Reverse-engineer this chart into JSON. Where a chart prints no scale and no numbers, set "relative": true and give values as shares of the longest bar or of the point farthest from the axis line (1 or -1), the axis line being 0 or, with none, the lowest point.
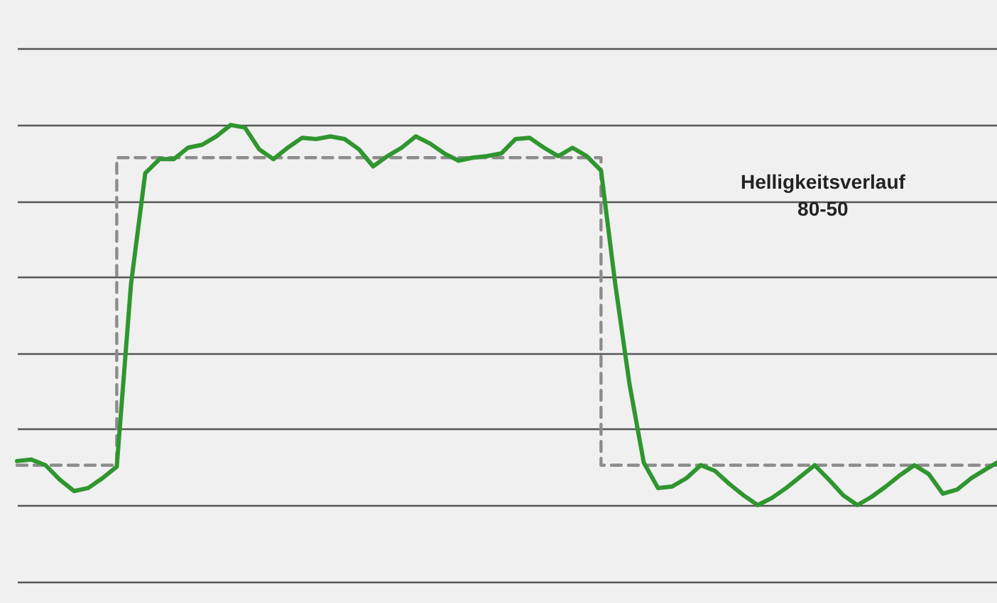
{
  "chart_data": {
    "type": "line",
    "relative": true,
    "grid": true,
    "categories": [
      null,
      null,
      null,
      null,
      null,
      null,
      null,
      null,
      null,
      null,
      null,
      null,
      null,
      null,
      null,
      null,
      null,
      null,
      null,
      null,
      null,
      null,
      null,
      null,
      null,
      null,
      null,
      null,
      null,
      null,
      null,
      null,
      null,
      null,
      null,
      null,
      null,
      null,
      null,
      null,
      null,
      null,
      null,
      null,
      null,
      null,
      null,
      null,
      null,
      null,
      null,
      null,
      null,
      null,
      null,
      null,
      null,
      null,
      null,
      null,
      null,
      null,
      null,
      null,
      null,
      null,
      null,
      null,
      null,
      null
    ],
    "series": [
      {
        "type": "step",
        "color": "#8c8c8c",
        "line_style": "dashed",
        "values": [
          0.105,
          0.105,
          0.105,
          0.105,
          0.105,
          0.105,
          0.105,
          0.914,
          0.914,
          0.914,
          0.914,
          0.914,
          0.914,
          0.914,
          0.914,
          0.914,
          0.914,
          0.914,
          0.914,
          0.914,
          0.914,
          0.914,
          0.914,
          0.914,
          0.914,
          0.914,
          0.914,
          0.914,
          0.914,
          0.914,
          0.914,
          0.914,
          0.914,
          0.914,
          0.914,
          0.914,
          0.914,
          0.914,
          0.914,
          0.914,
          0.914,
          0.105,
          0.105,
          0.105,
          0.105,
          0.105,
          0.105,
          0.105,
          0.105,
          0.105,
          0.105,
          0.105,
          0.105,
          0.105,
          0.105,
          0.105,
          0.105,
          0.105,
          0.105,
          0.105,
          0.105,
          0.105,
          0.105,
          0.105,
          0.105,
          0.105,
          0.105,
          0.105,
          0.105,
          0.105
        ]
      },
      {
        "type": "line",
        "color": "#2f962f",
        "line_style": "solid",
        "values": [
          0.116,
          0.12,
          0.105,
          0.067,
          0.037,
          0.045,
          0.071,
          0.101,
          0.581,
          0.873,
          0.91,
          0.91,
          0.94,
          0.948,
          0.97,
          1,
          0.993,
          0.936,
          0.91,
          0.94,
          0.966,
          0.963,
          0.97,
          0.963,
          0.936,
          0.891,
          0.918,
          0.94,
          0.97,
          0.951,
          0.925,
          0.906,
          0.914,
          0.918,
          0.925,
          0.963,
          0.966,
          0.94,
          0.918,
          0.94,
          0.918,
          0.88,
          0.581,
          0.318,
          0.112,
          0.045,
          0.049,
          0.071,
          0.105,
          0.09,
          0.056,
          0.026,
          0,
          0.019,
          0.045,
          0.075,
          0.105,
          0.067,
          0.026,
          0,
          0.022,
          0.049,
          0.079,
          0.105,
          0.082,
          0.03,
          0.041,
          0.071,
          0.094,
          0.116
        ]
      }
    ],
    "annotations": [
      "Helligkeitsverlauf\n80-50"
    ]
  }
}
